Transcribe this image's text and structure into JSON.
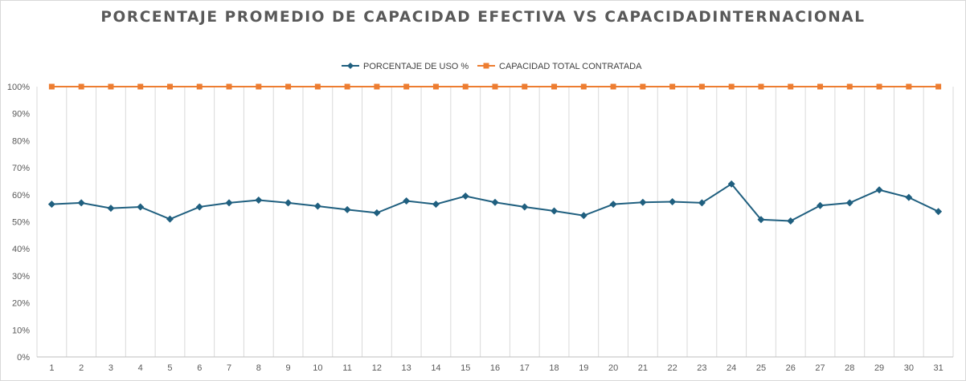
{
  "chart_data": {
    "type": "line",
    "title": "PORCENTAJE PROMEDIO DE CAPACIDAD EFECTIVA VS CAPACIDADINTERNACIONAL",
    "xlabel": "",
    "ylabel": "",
    "categories": [
      "1",
      "2",
      "3",
      "4",
      "5",
      "6",
      "7",
      "8",
      "9",
      "10",
      "11",
      "12",
      "13",
      "14",
      "15",
      "16",
      "17",
      "18",
      "19",
      "20",
      "21",
      "22",
      "23",
      "24",
      "25",
      "26",
      "27",
      "28",
      "29",
      "30",
      "31"
    ],
    "ylim": [
      0,
      100
    ],
    "y_ticks": [
      "0%",
      "10%",
      "20%",
      "30%",
      "40%",
      "50%",
      "60%",
      "70%",
      "80%",
      "90%",
      "100%"
    ],
    "grid": "vertical",
    "legend_position": "top",
    "series": [
      {
        "name": "PORCENTAJE DE USO %",
        "color": "#1f5f7f",
        "marker": "diamond",
        "values": [
          56.5,
          57,
          55,
          55.5,
          51,
          55.5,
          57,
          58,
          57,
          55.8,
          54.5,
          53.3,
          57.7,
          56.5,
          59.5,
          57.2,
          55.5,
          54,
          52.3,
          56.5,
          57.2,
          57.4,
          57,
          64,
          50.8,
          50.3,
          56,
          57,
          61.8,
          59,
          53.8
        ]
      },
      {
        "name": "CAPACIDAD TOTAL CONTRATADA",
        "color": "#ed7d31",
        "marker": "square",
        "values": [
          100,
          100,
          100,
          100,
          100,
          100,
          100,
          100,
          100,
          100,
          100,
          100,
          100,
          100,
          100,
          100,
          100,
          100,
          100,
          100,
          100,
          100,
          100,
          100,
          100,
          100,
          100,
          100,
          100,
          100,
          100
        ]
      }
    ]
  }
}
